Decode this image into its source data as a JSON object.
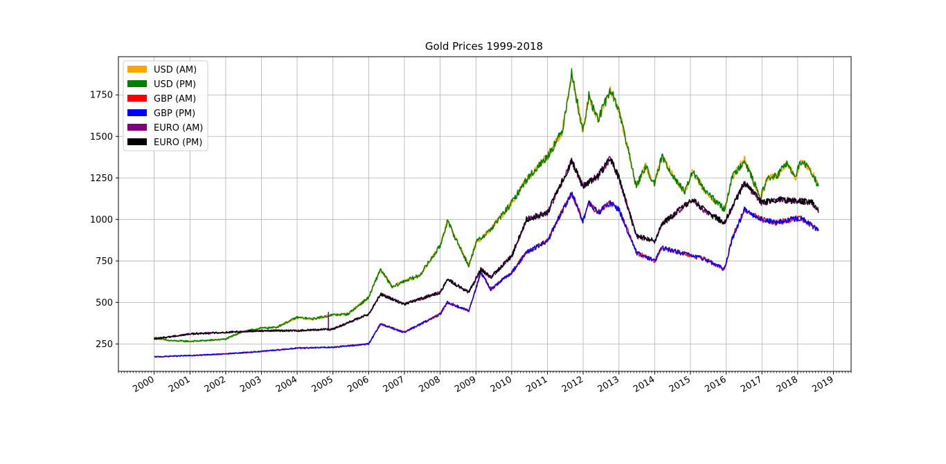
{
  "chart_data": {
    "type": "line",
    "title": "Gold Prices 1999-2018",
    "xlabel": "",
    "ylabel": "",
    "x_axis": {
      "kind": "date",
      "min": "1999-01-01",
      "max": "2019-07-01"
    },
    "ylim": [
      85,
      1980
    ],
    "y_ticks": [
      250,
      500,
      750,
      1000,
      1250,
      1500,
      1750
    ],
    "y_tick_labels": [
      "250",
      "500",
      "750",
      "1000",
      "1250",
      "1500",
      "1750"
    ],
    "x_ticks": [
      "2000-01-01",
      "2001-01-01",
      "2002-01-01",
      "2003-01-01",
      "2004-01-01",
      "2005-01-01",
      "2006-01-01",
      "2007-01-01",
      "2008-01-01",
      "2009-01-01",
      "2010-01-01",
      "2011-01-01",
      "2012-01-01",
      "2013-01-01",
      "2014-01-01",
      "2015-01-01",
      "2016-01-01",
      "2017-01-01",
      "2018-01-01",
      "2019-01-01"
    ],
    "x_tick_labels": [
      "2000",
      "2001",
      "2002",
      "2003",
      "2004",
      "2005",
      "2006",
      "2007",
      "2008",
      "2009",
      "2010",
      "2011",
      "2012",
      "2013",
      "2014",
      "2015",
      "2016",
      "2017",
      "2018",
      "2019"
    ],
    "grid": true,
    "legend_position": "top-left",
    "series": [
      {
        "name": "USD (AM)",
        "color": "#ffa500",
        "x": [
          "2000-01-01",
          "2000-06-01",
          "2001-01-01",
          "2001-06-01",
          "2002-01-01",
          "2002-06-01",
          "2003-01-01",
          "2003-06-01",
          "2004-01-01",
          "2004-06-01",
          "2005-01-01",
          "2005-06-01",
          "2006-01-01",
          "2006-05-01",
          "2006-09-01",
          "2007-01-01",
          "2007-06-01",
          "2008-01-01",
          "2008-03-15",
          "2008-10-20",
          "2009-01-01",
          "2009-06-01",
          "2010-01-01",
          "2010-06-01",
          "2011-01-01",
          "2011-06-01",
          "2011-09-05",
          "2011-12-30",
          "2012-02-28",
          "2012-06-01",
          "2012-10-05",
          "2013-01-01",
          "2013-06-28",
          "2013-10-01",
          "2014-01-01",
          "2014-03-15",
          "2014-06-01",
          "2014-11-05",
          "2015-01-20",
          "2015-06-01",
          "2015-12-15",
          "2016-03-01",
          "2016-07-05",
          "2016-12-15",
          "2017-03-01",
          "2017-06-01",
          "2017-09-08",
          "2017-12-12",
          "2018-01-25",
          "2018-05-01",
          "2018-08-01"
        ],
        "y": [
          288,
          270,
          266,
          270,
          279,
          320,
          345,
          350,
          410,
          400,
          425,
          430,
          530,
          700,
          590,
          630,
          660,
          840,
          990,
          720,
          860,
          940,
          1100,
          1240,
          1380,
          1530,
          1880,
          1530,
          1740,
          1600,
          1780,
          1660,
          1200,
          1320,
          1210,
          1380,
          1300,
          1160,
          1290,
          1170,
          1060,
          1250,
          1360,
          1130,
          1250,
          1260,
          1340,
          1250,
          1350,
          1310,
          1210
        ]
      },
      {
        "name": "USD (PM)",
        "color": "#008000",
        "x": [
          "2000-01-01",
          "2000-06-01",
          "2001-01-01",
          "2001-06-01",
          "2002-01-01",
          "2002-06-01",
          "2003-01-01",
          "2003-06-01",
          "2004-01-01",
          "2004-06-01",
          "2005-01-01",
          "2005-06-01",
          "2006-01-01",
          "2006-05-01",
          "2006-09-01",
          "2007-01-01",
          "2007-06-01",
          "2008-01-01",
          "2008-03-15",
          "2008-10-20",
          "2009-01-01",
          "2009-06-01",
          "2010-01-01",
          "2010-06-01",
          "2011-01-01",
          "2011-06-01",
          "2011-09-05",
          "2011-12-30",
          "2012-02-28",
          "2012-06-01",
          "2012-10-05",
          "2013-01-01",
          "2013-06-28",
          "2013-10-01",
          "2014-01-01",
          "2014-03-15",
          "2014-06-01",
          "2014-11-05",
          "2015-01-20",
          "2015-06-01",
          "2015-12-15",
          "2016-03-01",
          "2016-07-05",
          "2016-12-15",
          "2017-03-01",
          "2017-06-01",
          "2017-09-08",
          "2017-12-12",
          "2018-01-25",
          "2018-05-01",
          "2018-08-01"
        ],
        "y": [
          288,
          270,
          266,
          270,
          279,
          320,
          345,
          350,
          410,
          400,
          425,
          430,
          530,
          700,
          590,
          630,
          660,
          840,
          990,
          720,
          860,
          940,
          1100,
          1240,
          1380,
          1530,
          1880,
          1530,
          1740,
          1600,
          1780,
          1660,
          1200,
          1320,
          1210,
          1380,
          1300,
          1160,
          1290,
          1170,
          1060,
          1250,
          1360,
          1130,
          1250,
          1260,
          1340,
          1250,
          1350,
          1310,
          1200
        ]
      },
      {
        "name": "GBP (AM)",
        "color": "#ff0000",
        "x": [
          "2000-01-01",
          "2001-01-01",
          "2002-01-01",
          "2003-01-01",
          "2004-01-01",
          "2005-01-01",
          "2006-01-01",
          "2006-05-01",
          "2007-01-01",
          "2008-01-01",
          "2008-03-15",
          "2008-10-20",
          "2009-02-20",
          "2009-06-01",
          "2010-01-01",
          "2010-06-01",
          "2011-01-01",
          "2011-09-05",
          "2011-12-30",
          "2012-02-28",
          "2012-06-01",
          "2012-10-05",
          "2013-01-01",
          "2013-06-28",
          "2014-01-01",
          "2014-03-15",
          "2015-01-20",
          "2015-06-01",
          "2015-12-15",
          "2016-03-01",
          "2016-07-05",
          "2017-01-01",
          "2017-06-01",
          "2018-01-25",
          "2018-06-01",
          "2018-08-01"
        ],
        "y": [
          172,
          180,
          190,
          205,
          225,
          230,
          250,
          370,
          320,
          430,
          500,
          450,
          680,
          580,
          680,
          800,
          870,
          1160,
          990,
          1100,
          1040,
          1100,
          1060,
          800,
          750,
          830,
          780,
          760,
          700,
          880,
          1060,
          1000,
          980,
          1010,
          960,
          935
        ]
      },
      {
        "name": "GBP (PM)",
        "color": "#0000ff",
        "x": [
          "2000-01-01",
          "2001-01-01",
          "2002-01-01",
          "2003-01-01",
          "2004-01-01",
          "2005-01-01",
          "2006-01-01",
          "2006-05-01",
          "2007-01-01",
          "2008-01-01",
          "2008-03-15",
          "2008-10-20",
          "2009-02-20",
          "2009-06-01",
          "2010-01-01",
          "2010-06-01",
          "2011-01-01",
          "2011-09-05",
          "2011-12-30",
          "2012-02-28",
          "2012-06-01",
          "2012-10-05",
          "2013-01-01",
          "2013-06-28",
          "2014-01-01",
          "2014-03-15",
          "2015-01-20",
          "2015-06-01",
          "2015-12-15",
          "2016-03-01",
          "2016-07-05",
          "2017-01-01",
          "2017-06-01",
          "2018-01-25",
          "2018-06-01",
          "2018-08-01"
        ],
        "y": [
          172,
          180,
          190,
          205,
          225,
          230,
          250,
          370,
          320,
          430,
          500,
          450,
          680,
          580,
          680,
          800,
          870,
          1160,
          990,
          1100,
          1040,
          1100,
          1060,
          800,
          750,
          830,
          780,
          760,
          700,
          880,
          1060,
          1000,
          980,
          1010,
          960,
          930
        ]
      },
      {
        "name": "EURO (AM)",
        "color": "#800080",
        "x": [
          "2000-01-01",
          "2001-01-01",
          "2002-01-01",
          "2003-01-01",
          "2004-01-01",
          "2004-11-15",
          "2004-11-16",
          "2004-11-17",
          "2005-01-01",
          "2006-01-01",
          "2006-05-01",
          "2007-01-01",
          "2008-01-01",
          "2008-03-15",
          "2008-10-20",
          "2009-02-20",
          "2009-06-01",
          "2010-01-01",
          "2010-06-01",
          "2011-01-01",
          "2011-09-05",
          "2011-12-30",
          "2012-06-01",
          "2012-10-05",
          "2013-01-01",
          "2013-06-28",
          "2014-01-01",
          "2014-03-15",
          "2015-01-20",
          "2015-06-01",
          "2015-12-15",
          "2016-07-05",
          "2017-01-01",
          "2017-06-01",
          "2018-01-25",
          "2018-06-01",
          "2018-08-01"
        ],
        "y": [
          280,
          310,
          320,
          330,
          330,
          340,
          445,
          335,
          340,
          430,
          550,
          490,
          560,
          640,
          560,
          700,
          650,
          780,
          1000,
          1040,
          1350,
          1200,
          1260,
          1370,
          1250,
          900,
          870,
          970,
          1120,
          1050,
          980,
          1220,
          1100,
          1120,
          1110,
          1100,
          1050
        ]
      },
      {
        "name": "EURO (PM)",
        "color": "#000000",
        "x": [
          "2000-01-01",
          "2001-01-01",
          "2002-01-01",
          "2003-01-01",
          "2004-01-01",
          "2005-01-01",
          "2006-01-01",
          "2006-05-01",
          "2007-01-01",
          "2008-01-01",
          "2008-03-15",
          "2008-10-20",
          "2009-02-20",
          "2009-06-01",
          "2010-01-01",
          "2010-06-01",
          "2011-01-01",
          "2011-09-05",
          "2011-12-30",
          "2012-06-01",
          "2012-10-05",
          "2013-01-01",
          "2013-06-28",
          "2014-01-01",
          "2014-03-15",
          "2015-01-20",
          "2015-06-01",
          "2015-12-15",
          "2016-07-05",
          "2017-01-01",
          "2017-06-01",
          "2018-01-25",
          "2018-06-01",
          "2018-08-01"
        ],
        "y": [
          280,
          310,
          320,
          330,
          330,
          340,
          430,
          550,
          490,
          560,
          640,
          560,
          700,
          650,
          780,
          1000,
          1040,
          1350,
          1200,
          1260,
          1370,
          1250,
          900,
          870,
          970,
          1120,
          1050,
          980,
          1220,
          1100,
          1120,
          1110,
          1100,
          1040
        ]
      }
    ]
  }
}
